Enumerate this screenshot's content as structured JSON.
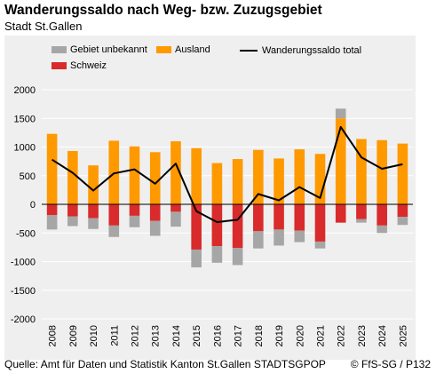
{
  "header": {
    "title": "Wanderungssaldo nach Weg- bzw. Zuzugsgebiet",
    "subtitle": "Stadt St.Gallen"
  },
  "footer": {
    "source": "Quelle: Amt für Daten und Statistik Kanton St.Gallen STADTSGPOP",
    "credit": "© FfS-SG / P132"
  },
  "legend": {
    "unknown": "Gebiet unbekannt",
    "abroad": "Ausland",
    "swiss": "Schweiz",
    "total": "Wanderungssaldo total"
  },
  "colors": {
    "unknown": "#a6a6a6",
    "abroad": "#ff9900",
    "swiss": "#d92b2b",
    "total": "#000000",
    "panel": "#efefef",
    "grid": "#ffffff"
  },
  "chart_data": {
    "type": "bar",
    "stacked": true,
    "title": "Wanderungssaldo nach Weg- bzw. Zuzugsgebiet",
    "subtitle": "Stadt St.Gallen",
    "categories": [
      "2008",
      "2009",
      "2010",
      "2011",
      "2012",
      "2013",
      "2014",
      "2015",
      "2016",
      "2017",
      "2018",
      "2019",
      "2020",
      "2021",
      "2022",
      "2023",
      "2024",
      "2025"
    ],
    "ylim": [
      -2000,
      2000
    ],
    "yticks": [
      -2000,
      -1500,
      -1000,
      -500,
      0,
      500,
      1000,
      1500,
      2000
    ],
    "grid": true,
    "legend_position": "top",
    "series": [
      {
        "name": "Ausland",
        "key": "abroad",
        "values": [
          1230,
          930,
          680,
          1110,
          1010,
          910,
          1100,
          980,
          720,
          790,
          950,
          800,
          960,
          880,
          1500,
          1140,
          1120,
          1060
        ]
      },
      {
        "name": "Schweiz",
        "key": "swiss",
        "values": [
          -190,
          -210,
          -240,
          -370,
          -200,
          -290,
          -130,
          -790,
          -730,
          -760,
          -470,
          -440,
          -460,
          -650,
          -320,
          -260,
          -370,
          -220
        ]
      },
      {
        "name": "Gebiet unbekannt",
        "key": "unknown",
        "values": [
          -250,
          -170,
          -190,
          -200,
          -200,
          -260,
          -260,
          -310,
          -290,
          -300,
          -300,
          -280,
          -200,
          -120,
          170,
          -60,
          -130,
          -140
        ]
      },
      {
        "name": "Wanderungssaldo total",
        "key": "total",
        "type": "line",
        "values": [
          780,
          550,
          240,
          540,
          610,
          360,
          710,
          -120,
          -310,
          -270,
          180,
          70,
          300,
          110,
          1350,
          820,
          620,
          700
        ]
      }
    ]
  }
}
